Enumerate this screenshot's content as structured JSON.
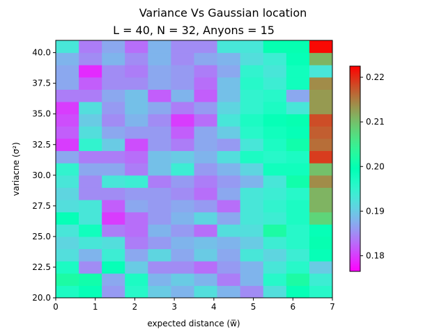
{
  "chart_data": {
    "type": "heatmap",
    "title": "Variance Vs Gaussian location",
    "subtitle": "L = 40, N = 32, Anyons = 15",
    "xlabel": "expected distance (w̅)",
    "ylabel": "variacne (σ²)",
    "xlim": [
      0,
      7
    ],
    "ylim": [
      20,
      41
    ],
    "xticks": [
      "0",
      "1",
      "2",
      "3",
      "4",
      "5",
      "6",
      "7"
    ],
    "yticks": [
      "20.0",
      "22.5",
      "25.0",
      "27.5",
      "30.0",
      "32.5",
      "35.0",
      "37.5",
      "40.0"
    ],
    "x_bin_count": 12,
    "y_values": [
      20,
      21,
      22,
      23,
      24,
      25,
      26,
      27,
      28,
      29,
      30,
      31,
      32,
      33,
      34,
      35,
      36,
      37,
      38,
      39,
      40
    ],
    "colorbar": {
      "min": 0.1765,
      "max": 0.2225,
      "ticks": [
        "0.18",
        "0.19",
        "0.20",
        "0.21",
        "0.22"
      ],
      "tick_values": [
        0.18,
        0.19,
        0.2,
        0.21,
        0.22
      ],
      "colormap": "rainbow"
    },
    "values": [
      [
        0.197,
        0.199,
        0.186,
        0.196,
        0.19,
        0.188,
        0.192,
        0.188,
        0.185,
        0.192,
        0.199,
        0.196
      ],
      [
        0.202,
        0.201,
        0.187,
        0.197,
        0.188,
        0.19,
        0.188,
        0.184,
        0.188,
        0.196,
        0.202,
        0.194
      ],
      [
        0.197,
        0.185,
        0.199,
        0.19,
        0.185,
        0.185,
        0.183,
        0.186,
        0.188,
        0.193,
        0.196,
        0.19
      ],
      [
        0.192,
        0.188,
        0.194,
        0.187,
        0.191,
        0.187,
        0.19,
        0.187,
        0.193,
        0.191,
        0.194,
        0.199
      ],
      [
        0.191,
        0.193,
        0.192,
        0.184,
        0.186,
        0.188,
        0.189,
        0.188,
        0.19,
        0.194,
        0.196,
        0.2
      ],
      [
        0.193,
        0.198,
        0.184,
        0.183,
        0.188,
        0.186,
        0.183,
        0.192,
        0.192,
        0.202,
        0.196,
        0.199
      ],
      [
        0.199,
        0.193,
        0.18,
        0.183,
        0.186,
        0.188,
        0.191,
        0.187,
        0.193,
        0.194,
        0.197,
        0.208
      ],
      [
        0.192,
        0.193,
        0.182,
        0.187,
        0.186,
        0.187,
        0.186,
        0.183,
        0.193,
        0.195,
        0.197,
        0.211
      ],
      [
        0.191,
        0.185,
        0.185,
        0.186,
        0.186,
        0.185,
        0.183,
        0.187,
        0.193,
        0.194,
        0.196,
        0.211
      ],
      [
        0.193,
        0.185,
        0.193,
        0.194,
        0.184,
        0.186,
        0.184,
        0.186,
        0.188,
        0.193,
        0.201,
        0.214
      ],
      [
        0.195,
        0.187,
        0.187,
        0.184,
        0.189,
        0.194,
        0.186,
        0.188,
        0.191,
        0.198,
        0.198,
        0.21
      ],
      [
        0.187,
        0.184,
        0.184,
        0.183,
        0.189,
        0.19,
        0.188,
        0.192,
        0.197,
        0.196,
        0.197,
        0.219
      ],
      [
        0.18,
        0.195,
        0.19,
        0.181,
        0.186,
        0.184,
        0.187,
        0.186,
        0.193,
        0.197,
        0.201,
        0.216
      ],
      [
        0.182,
        0.192,
        0.187,
        0.186,
        0.186,
        0.182,
        0.187,
        0.19,
        0.196,
        0.198,
        0.199,
        0.217
      ],
      [
        0.181,
        0.19,
        0.185,
        0.188,
        0.185,
        0.18,
        0.183,
        0.193,
        0.197,
        0.199,
        0.2,
        0.218
      ],
      [
        0.18,
        0.192,
        0.186,
        0.189,
        0.187,
        0.184,
        0.186,
        0.191,
        0.195,
        0.197,
        0.193,
        0.213
      ],
      [
        0.184,
        0.184,
        0.187,
        0.189,
        0.182,
        0.188,
        0.182,
        0.189,
        0.195,
        0.196,
        0.187,
        0.213
      ],
      [
        0.187,
        0.182,
        0.185,
        0.185,
        0.187,
        0.186,
        0.183,
        0.189,
        0.196,
        0.194,
        0.198,
        0.214
      ],
      [
        0.187,
        0.179,
        0.185,
        0.184,
        0.187,
        0.186,
        0.184,
        0.187,
        0.195,
        0.193,
        0.198,
        0.193
      ],
      [
        0.188,
        0.185,
        0.188,
        0.185,
        0.188,
        0.185,
        0.187,
        0.188,
        0.192,
        0.194,
        0.199,
        0.211
      ],
      [
        0.193,
        0.184,
        0.187,
        0.183,
        0.188,
        0.185,
        0.185,
        0.193,
        0.193,
        0.2,
        0.2,
        0.222
      ]
    ]
  }
}
